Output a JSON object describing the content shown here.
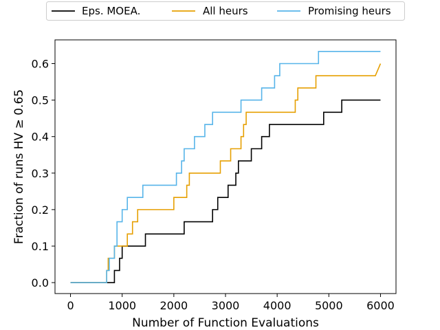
{
  "chart_data": {
    "type": "line",
    "xlabel": "Number of Function Evaluations",
    "ylabel": "Fraction of runs HV  ≥  0.65",
    "xlim": [
      -300,
      6300
    ],
    "ylim": [
      -0.03,
      0.665
    ],
    "xticks": [
      0,
      1000,
      2000,
      3000,
      4000,
      5000,
      6000
    ],
    "yticks": [
      0.0,
      0.1,
      0.2,
      0.3,
      0.4,
      0.5,
      0.6
    ],
    "xtick_labels": [
      "0",
      "1000",
      "2000",
      "3000",
      "4000",
      "5000",
      "6000"
    ],
    "ytick_labels": [
      "0.0",
      "0.1",
      "0.2",
      "0.3",
      "0.4",
      "0.5",
      "0.6"
    ],
    "grid": false,
    "legend_position": "top-center, outside",
    "step": true,
    "series": [
      {
        "name": "Eps. MOEA.",
        "color": "#000000",
        "points": [
          [
            0,
            0.0
          ],
          [
            850,
            0.0
          ],
          [
            850,
            0.0333
          ],
          [
            950,
            0.0333
          ],
          [
            950,
            0.0667
          ],
          [
            1000,
            0.0667
          ],
          [
            1000,
            0.1
          ],
          [
            1450,
            0.1
          ],
          [
            1450,
            0.1333
          ],
          [
            2200,
            0.1333
          ],
          [
            2200,
            0.1667
          ],
          [
            2750,
            0.1667
          ],
          [
            2750,
            0.2
          ],
          [
            2850,
            0.2
          ],
          [
            2850,
            0.2333
          ],
          [
            3050,
            0.2333
          ],
          [
            3050,
            0.2667
          ],
          [
            3200,
            0.2667
          ],
          [
            3200,
            0.3
          ],
          [
            3250,
            0.3
          ],
          [
            3250,
            0.3333
          ],
          [
            3500,
            0.3333
          ],
          [
            3500,
            0.3667
          ],
          [
            3700,
            0.3667
          ],
          [
            3700,
            0.4
          ],
          [
            3850,
            0.4
          ],
          [
            3850,
            0.4333
          ],
          [
            4900,
            0.4333
          ],
          [
            4900,
            0.4667
          ],
          [
            5250,
            0.4667
          ],
          [
            5250,
            0.5
          ],
          [
            6000,
            0.5
          ]
        ]
      },
      {
        "name": "All heurs",
        "color": "#e69f00",
        "points": [
          [
            0,
            0.0
          ],
          [
            700,
            0.0
          ],
          [
            700,
            0.0333
          ],
          [
            730,
            0.0333
          ],
          [
            730,
            0.0667
          ],
          [
            850,
            0.0667
          ],
          [
            850,
            0.1
          ],
          [
            1100,
            0.1
          ],
          [
            1100,
            0.1333
          ],
          [
            1200,
            0.1333
          ],
          [
            1200,
            0.1667
          ],
          [
            1300,
            0.1667
          ],
          [
            1300,
            0.2
          ],
          [
            2000,
            0.2
          ],
          [
            2000,
            0.2333
          ],
          [
            2250,
            0.2333
          ],
          [
            2250,
            0.2667
          ],
          [
            2300,
            0.2667
          ],
          [
            2300,
            0.3
          ],
          [
            2900,
            0.3
          ],
          [
            2900,
            0.3333
          ],
          [
            3100,
            0.3333
          ],
          [
            3100,
            0.3667
          ],
          [
            3300,
            0.3667
          ],
          [
            3300,
            0.4
          ],
          [
            3350,
            0.4
          ],
          [
            3350,
            0.4333
          ],
          [
            3400,
            0.4333
          ],
          [
            3400,
            0.4667
          ],
          [
            4350,
            0.4667
          ],
          [
            4350,
            0.5
          ],
          [
            4400,
            0.5
          ],
          [
            4400,
            0.5333
          ],
          [
            4750,
            0.5333
          ],
          [
            4750,
            0.5667
          ],
          [
            5900,
            0.5667
          ],
          [
            6000,
            0.6
          ]
        ]
      },
      {
        "name": "Promising heurs",
        "color": "#56b4e9",
        "points": [
          [
            0,
            0.0
          ],
          [
            700,
            0.0
          ],
          [
            700,
            0.0333
          ],
          [
            750,
            0.0333
          ],
          [
            750,
            0.0667
          ],
          [
            850,
            0.0667
          ],
          [
            850,
            0.1
          ],
          [
            900,
            0.1
          ],
          [
            900,
            0.1333
          ],
          [
            900,
            0.1667
          ],
          [
            1000,
            0.1667
          ],
          [
            1000,
            0.2
          ],
          [
            1100,
            0.2
          ],
          [
            1100,
            0.2333
          ],
          [
            1400,
            0.2333
          ],
          [
            1400,
            0.2667
          ],
          [
            2050,
            0.2667
          ],
          [
            2050,
            0.3
          ],
          [
            2150,
            0.3
          ],
          [
            2150,
            0.3333
          ],
          [
            2200,
            0.3333
          ],
          [
            2200,
            0.3667
          ],
          [
            2400,
            0.3667
          ],
          [
            2400,
            0.4
          ],
          [
            2600,
            0.4
          ],
          [
            2600,
            0.4333
          ],
          [
            2750,
            0.4333
          ],
          [
            2750,
            0.4667
          ],
          [
            3300,
            0.4667
          ],
          [
            3300,
            0.5
          ],
          [
            3700,
            0.5
          ],
          [
            3700,
            0.5333
          ],
          [
            3950,
            0.5333
          ],
          [
            3950,
            0.5667
          ],
          [
            4050,
            0.5667
          ],
          [
            4050,
            0.6
          ],
          [
            4800,
            0.6
          ],
          [
            4800,
            0.6333
          ],
          [
            6000,
            0.6333
          ]
        ]
      }
    ]
  }
}
